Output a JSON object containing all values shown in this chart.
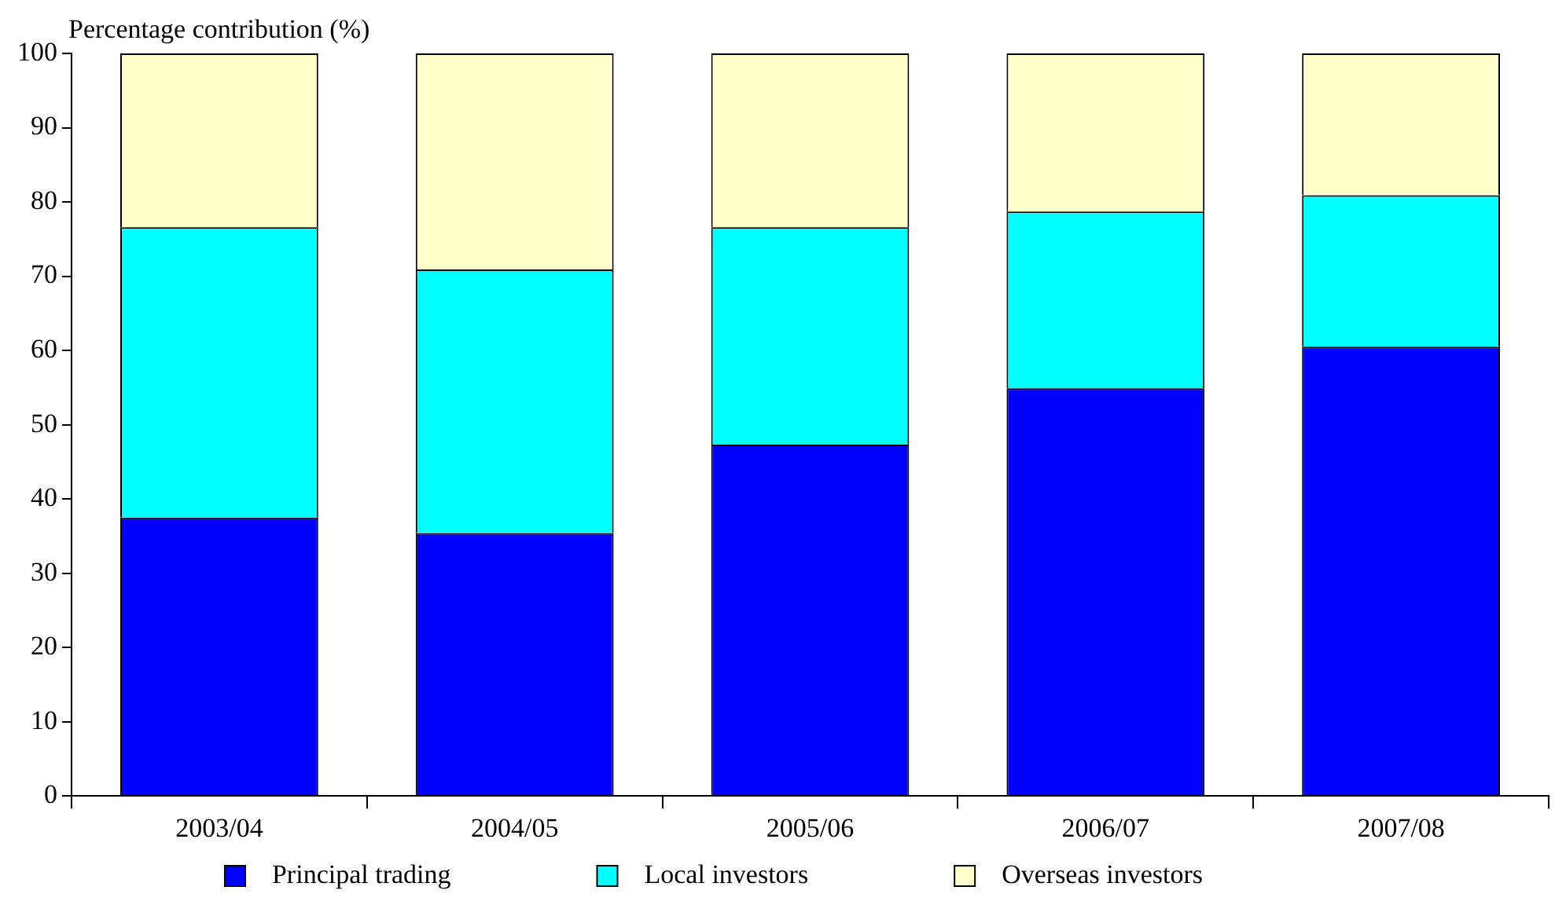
{
  "chart_data": {
    "type": "bar",
    "stacked": true,
    "ylabel": "Percentage contribution (%)",
    "categories": [
      "2003/04",
      "2004/05",
      "2005/06",
      "2006/07",
      "2007/08"
    ],
    "series": [
      {
        "name": "Principal trading",
        "color": "#0000ff",
        "values": [
          37.5,
          35.4,
          47.3,
          54.9,
          60.5
        ]
      },
      {
        "name": "Local investors",
        "color": "#00ffff",
        "values": [
          39.1,
          35.5,
          29.3,
          23.8,
          20.4
        ]
      },
      {
        "name": "Overseas investors",
        "color": "#ffffcc",
        "values": [
          23.4,
          29.1,
          23.4,
          21.3,
          19.1
        ]
      }
    ],
    "ylim": [
      0,
      100
    ],
    "yticks": [
      0,
      10,
      20,
      30,
      40,
      50,
      60,
      70,
      80,
      90,
      100
    ],
    "grid": false,
    "legend": "bottom"
  }
}
